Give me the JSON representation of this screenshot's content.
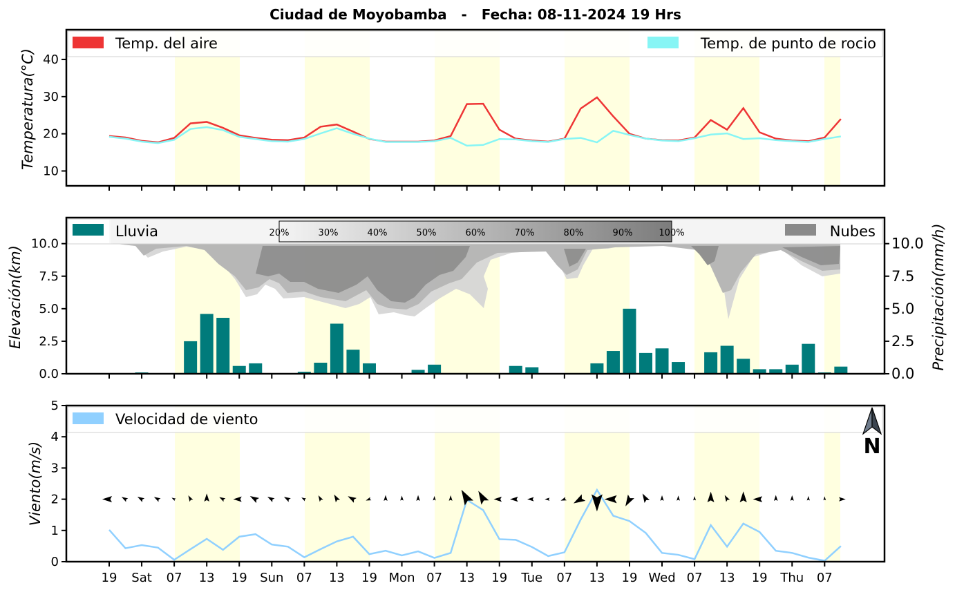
{
  "title": "Ciudad de Moyobamba   -   Fecha: 08-11-2024 19 Hrs",
  "x_ticks": [
    "19",
    "Sat",
    "07",
    "13",
    "19",
    "Sun",
    "07",
    "13",
    "19",
    "Mon",
    "07",
    "13",
    "19",
    "Tue",
    "07",
    "13",
    "19",
    "Wed",
    "07",
    "13",
    "19",
    "Thu",
    "07"
  ],
  "colors": {
    "air_temp": "#ee3535",
    "dew_point": "#87f5f5",
    "rain": "#007b7b",
    "clouds": "#8a8a8a",
    "wind": "#90d0ff",
    "daytime_band": "#ffffe0",
    "north_arrow": "#6e7b8b"
  },
  "chart_data": [
    {
      "type": "line",
      "name": "temperature",
      "ylabel": "Temperatura(°C)",
      "ylim": [
        6,
        48
      ],
      "yticks": [
        "10",
        "20",
        "30",
        "40"
      ],
      "x_step_hours": 3,
      "series": [
        {
          "name": "Temp. del aire",
          "values": [
            19.4,
            19.0,
            18.1,
            17.7,
            18.9,
            22.8,
            23.2,
            21.6,
            19.6,
            18.9,
            18.4,
            18.3,
            19.0,
            21.9,
            22.5,
            20.6,
            18.6,
            17.9,
            17.9,
            17.9,
            18.2,
            19.4,
            28.0,
            28.1,
            21.1,
            18.7,
            18.2,
            17.9,
            18.7,
            26.8,
            29.8,
            24.7,
            20.0,
            18.7,
            18.3,
            18.2,
            19.0,
            23.7,
            21.1,
            26.9,
            20.4,
            18.7,
            18.2,
            18.0,
            19.0,
            24.0
          ]
        },
        {
          "name": "Temp. de punto de rocio",
          "values": [
            19.2,
            18.7,
            17.9,
            17.5,
            18.4,
            21.3,
            21.8,
            21.0,
            19.2,
            18.6,
            18.0,
            17.9,
            18.6,
            20.1,
            21.5,
            20.0,
            18.7,
            17.8,
            17.8,
            17.8,
            18.0,
            18.9,
            16.8,
            17.0,
            18.6,
            18.5,
            18.0,
            17.8,
            18.6,
            18.9,
            17.7,
            20.8,
            19.7,
            18.7,
            18.2,
            18.0,
            18.8,
            19.8,
            20.1,
            18.6,
            18.8,
            18.3,
            18.0,
            17.8,
            18.6,
            19.3
          ]
        }
      ]
    },
    {
      "type": "bar",
      "name": "precipitation",
      "ylabel": "Elevación(km)",
      "ylabel_right": "Precipitación(mm/h)",
      "ylim": [
        0,
        12
      ],
      "yticks": [
        "0.0",
        "2.5",
        "5.0",
        "7.5",
        "10.0"
      ],
      "yticks_right": [
        "0.0",
        "2.5",
        "5.0",
        "7.5",
        "10.0"
      ],
      "series": [
        {
          "name": "Lluvia",
          "values": [
            0,
            0,
            0.1,
            0,
            0,
            2.5,
            4.6,
            4.3,
            0.6,
            0.8,
            0,
            0,
            0.15,
            0.85,
            3.85,
            1.85,
            0.8,
            0.05,
            0,
            0.3,
            0.7,
            0.05,
            0,
            0,
            0,
            0.6,
            0.5,
            0,
            0,
            0,
            0.8,
            1.75,
            5.0,
            1.6,
            1.95,
            0.9,
            0,
            1.65,
            2.15,
            1.15,
            0.35,
            0.35,
            0.7,
            2.3,
            0.1,
            0.55
          ]
        },
        {
          "name": "Nubes",
          "values": []
        }
      ],
      "cloud_colorbar_labels": [
        "20%",
        "30%",
        "40%",
        "50%",
        "60%",
        "70%",
        "80%",
        "90%",
        "100%"
      ]
    },
    {
      "type": "line",
      "name": "wind",
      "ylabel": "Viento(m/s)",
      "ylim": [
        0,
        5
      ],
      "yticks": [
        "0",
        "1",
        "2",
        "3",
        "4",
        "5"
      ],
      "series": [
        {
          "name": "Velocidad de viento",
          "values": [
            1.02,
            0.43,
            0.53,
            0.45,
            0.06,
            0.4,
            0.73,
            0.38,
            0.8,
            0.88,
            0.55,
            0.48,
            0.14,
            0.4,
            0.65,
            0.8,
            0.24,
            0.35,
            0.2,
            0.33,
            0.12,
            0.28,
            1.98,
            1.65,
            0.72,
            0.7,
            0.47,
            0.18,
            0.3,
            1.35,
            2.3,
            1.47,
            1.3,
            0.92,
            0.28,
            0.22,
            0.08,
            1.17,
            0.48,
            1.22,
            0.95,
            0.35,
            0.28,
            0.13,
            0.03,
            0.5
          ]
        }
      ],
      "wind_direction_deg": [
        270,
        300,
        300,
        300,
        300,
        330,
        0,
        300,
        270,
        300,
        300,
        300,
        300,
        330,
        330,
        300,
        250,
        0,
        0,
        0,
        0,
        0,
        330,
        330,
        270,
        270,
        270,
        270,
        250,
        240,
        180,
        270,
        210,
        330,
        0,
        0,
        0,
        0,
        330,
        0,
        270,
        0,
        0,
        0,
        0,
        90
      ],
      "north_label": "N"
    }
  ]
}
